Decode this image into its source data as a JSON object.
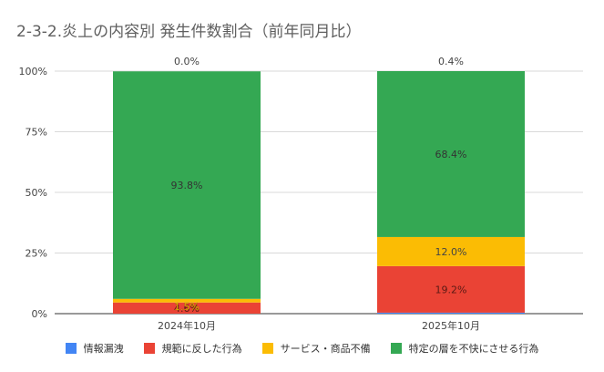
{
  "chart_data": {
    "type": "bar",
    "stacked": true,
    "title": "2-3-2.炎上の内容別 発生件数割合（前年同月比）",
    "categories": [
      "2024年10月",
      "2025年10月"
    ],
    "ylim": [
      0,
      100
    ],
    "yticks": [
      "0%",
      "25%",
      "50%",
      "75%",
      "100%"
    ],
    "grid": true,
    "legend_position": "bottom",
    "series": [
      {
        "name": "情報漏洩",
        "color": "#4285F4",
        "values": [
          0.0,
          0.4
        ],
        "labels": [
          "0.0%",
          "0.4%"
        ]
      },
      {
        "name": "規範に反した行為",
        "color": "#EA4335",
        "values": [
          4.6,
          19.2
        ],
        "labels": [
          "4.6%",
          "19.2%"
        ]
      },
      {
        "name": "サービス・商品不備",
        "color": "#FBBC04",
        "values": [
          1.5,
          12.0
        ],
        "labels": [
          "1.5%",
          "12.0%"
        ]
      },
      {
        "name": "特定の層を不快にさせる行為",
        "color": "#34A853",
        "values": [
          93.8,
          68.4
        ],
        "labels": [
          "93.8%",
          "68.4%"
        ]
      }
    ]
  }
}
